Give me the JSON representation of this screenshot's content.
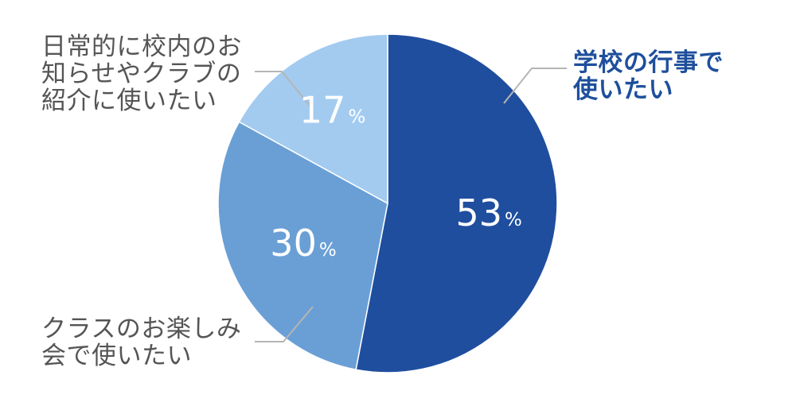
{
  "chart_data": {
    "type": "pie",
    "title": "",
    "categories": [
      "学校の行事で使いたい",
      "クラスのお楽しみ会で使いたい",
      "日常的に校内のお知らせやクラブの紹介に使いたい"
    ],
    "values": [
      53,
      30,
      17
    ],
    "unit": "%",
    "percent_symbol": "%",
    "colors": [
      "#1f4e9e",
      "#6a9fd6",
      "#a3cbf0"
    ],
    "start_direction": "top",
    "direction": "clockwise",
    "callouts": [
      {
        "text": "学校の行事で\n使いたい",
        "emphasis": true
      },
      {
        "text": "クラスのお楽しみ\n会で使いたい",
        "emphasis": false
      },
      {
        "text": "日常的に校内のお\n知らせやクラブの\n紹介に使いたい",
        "emphasis": false
      }
    ],
    "leader_color": "#b5b5b5"
  }
}
